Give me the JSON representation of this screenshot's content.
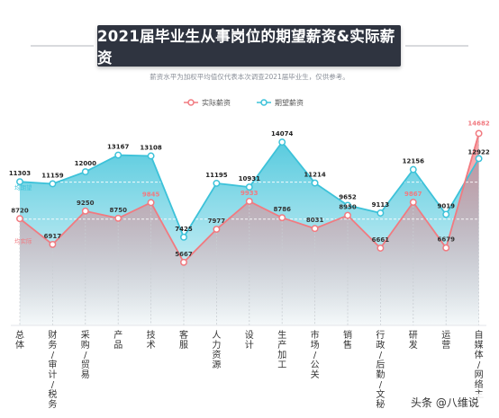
{
  "header": {
    "title": "2021届毕业生从事岗位的期望薪资&实际薪资",
    "subtitle": "薪资水平为加权平均值仅代表本次调查2021届毕业生，仅供参考。"
  },
  "watermark": "头条 @八维说",
  "colors": {
    "actual": "#f17a80",
    "expected": "#3cc2d9",
    "banner": "#2f3440",
    "axis_label": "#333333"
  },
  "chart_data": {
    "type": "line",
    "categories": [
      "总体",
      "财务/审计/税务",
      "采购/贸易",
      "产品",
      "技术",
      "客服",
      "人力资源",
      "设计",
      "生产加工",
      "市场/公关",
      "销售",
      "行政/后勤/文秘",
      "研发",
      "运营",
      "自媒体/网络主"
    ],
    "series": [
      {
        "name": "实际薪资",
        "values": [
          8720,
          6917,
          9250,
          8750,
          9845,
          5667,
          7977,
          9933,
          8786,
          8031,
          8950,
          6661,
          9867,
          6679,
          14682
        ],
        "color": "#f17a80"
      },
      {
        "name": "期望薪资",
        "values": [
          11303,
          11159,
          12000,
          13167,
          13108,
          7425,
          11195,
          10931,
          14074,
          11214,
          9652,
          9113,
          12156,
          9019,
          12922
        ],
        "color": "#3cc2d9"
      }
    ],
    "reference_labels": {
      "expected": "均期望",
      "actual": "均实际"
    },
    "legend_position": "top-center",
    "grid": false
  }
}
